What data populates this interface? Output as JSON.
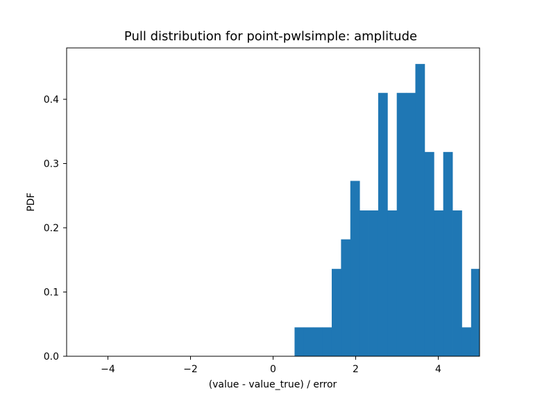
{
  "chart_data": {
    "type": "bar",
    "title": "Pull distribution for point-pwlsimple: amplitude",
    "xlabel": "(value - value_true) / error",
    "ylabel": "PDF",
    "xlim": [
      -5,
      5
    ],
    "ylim": [
      0,
      0.48
    ],
    "xticks": [
      -4,
      -2,
      0,
      2,
      4
    ],
    "xtick_labels": [
      "−4",
      "−2",
      "0",
      "2",
      "4"
    ],
    "yticks": [
      0.0,
      0.1,
      0.2,
      0.3,
      0.4
    ],
    "ytick_labels": [
      "0.0",
      "0.1",
      "0.2",
      "0.3",
      "0.4"
    ],
    "grid": false,
    "bar_color": "#1f77b4",
    "bins": [
      {
        "x0": 0.52,
        "x1": 0.745,
        "value": 0.045
      },
      {
        "x0": 0.745,
        "x1": 0.97,
        "value": 0.045
      },
      {
        "x0": 0.97,
        "x1": 1.195,
        "value": 0.045
      },
      {
        "x0": 1.195,
        "x1": 1.42,
        "value": 0.045
      },
      {
        "x0": 1.42,
        "x1": 1.645,
        "value": 0.136
      },
      {
        "x0": 1.645,
        "x1": 1.87,
        "value": 0.182
      },
      {
        "x0": 1.87,
        "x1": 2.095,
        "value": 0.273
      },
      {
        "x0": 2.095,
        "x1": 2.32,
        "value": 0.227
      },
      {
        "x0": 2.32,
        "x1": 2.545,
        "value": 0.227
      },
      {
        "x0": 2.545,
        "x1": 2.77,
        "value": 0.41
      },
      {
        "x0": 2.77,
        "x1": 2.995,
        "value": 0.227
      },
      {
        "x0": 2.995,
        "x1": 3.22,
        "value": 0.41
      },
      {
        "x0": 3.22,
        "x1": 3.445,
        "value": 0.41
      },
      {
        "x0": 3.445,
        "x1": 3.67,
        "value": 0.455
      },
      {
        "x0": 3.67,
        "x1": 3.895,
        "value": 0.318
      },
      {
        "x0": 3.895,
        "x1": 4.12,
        "value": 0.227
      },
      {
        "x0": 4.12,
        "x1": 4.345,
        "value": 0.318
      },
      {
        "x0": 4.345,
        "x1": 4.57,
        "value": 0.227
      },
      {
        "x0": 4.57,
        "x1": 4.795,
        "value": 0.045
      },
      {
        "x0": 4.795,
        "x1": 5.02,
        "value": 0.136
      }
    ]
  }
}
